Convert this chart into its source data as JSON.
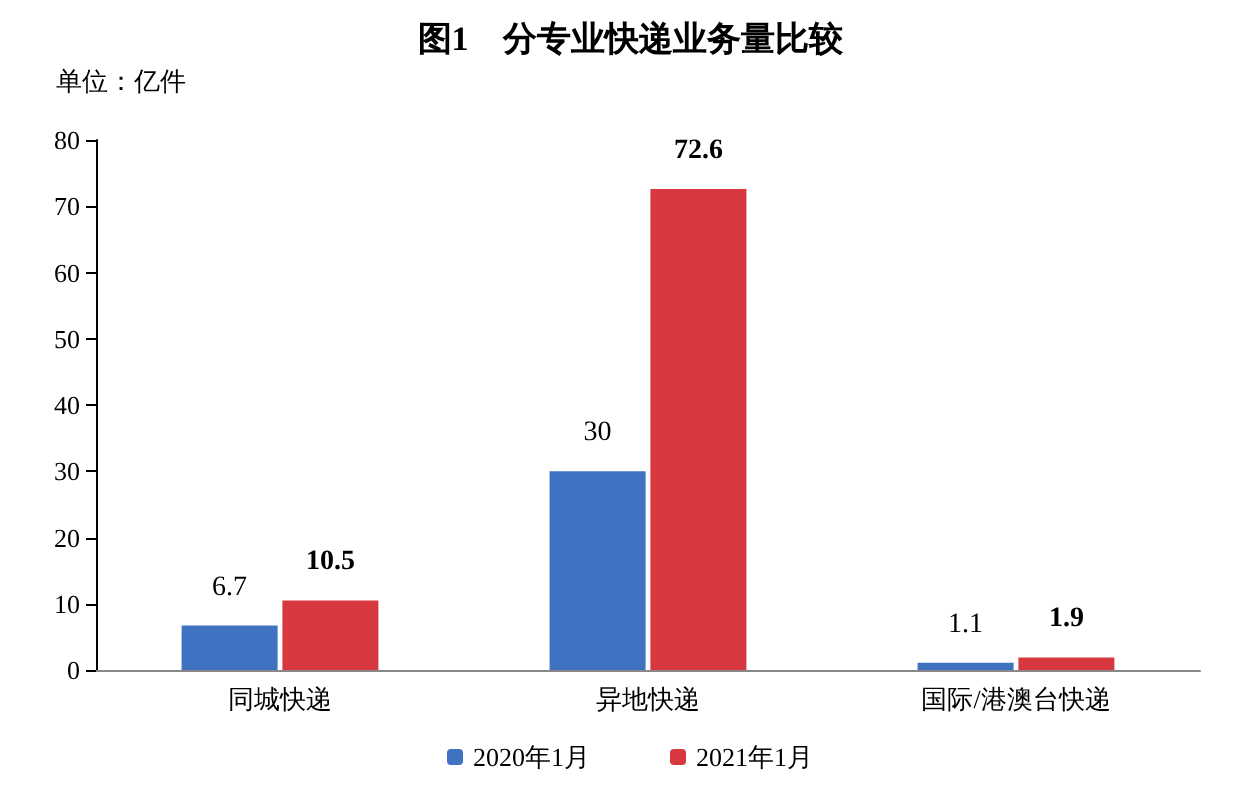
{
  "chart_data": {
    "type": "bar",
    "title": "图1　分专业快递业务量比较",
    "annotations": [
      "单位：亿件"
    ],
    "categories": [
      "同城快递",
      "异地快递",
      "国际/港澳台快递"
    ],
    "series": [
      {
        "name": "2020年1月",
        "color": "#3f73c2",
        "values": [
          6.7,
          30,
          1.1
        ]
      },
      {
        "name": "2021年1月",
        "color": "#d7373f",
        "values": [
          10.5,
          72.6,
          1.9
        ]
      }
    ],
    "ylim": [
      0,
      80
    ],
    "yticks": [
      0,
      10,
      20,
      30,
      40,
      50,
      60,
      70,
      80
    ],
    "grid": false,
    "legend": "bottom",
    "data_labels": true
  }
}
